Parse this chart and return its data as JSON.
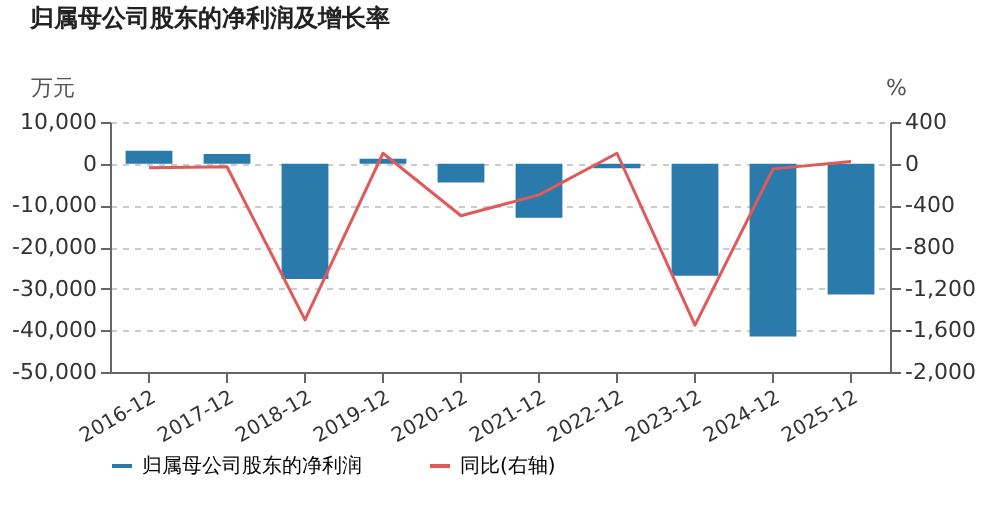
{
  "chart_data": {
    "type": "bar",
    "title": "归属母公司股东的净利润及增长率",
    "ylabel": "万元",
    "y2label": "%",
    "categories": [
      "2016-12",
      "2017-12",
      "2018-12",
      "2019-12",
      "2020-12",
      "2021-12",
      "2022-12",
      "2023-12",
      "2024-12",
      "2025-12"
    ],
    "series": [
      {
        "name": "归属母公司股东的净利润",
        "color": "#2a7aab",
        "values": [
          3100,
          2300,
          -27700,
          1200,
          -4500,
          -13000,
          -1100,
          -26900,
          -41500,
          -31400
        ]
      },
      {
        "name": "同比(右轴)",
        "type": "line",
        "axis": "y2",
        "color": "#e05a5a",
        "values": [
          -40,
          -30,
          -1500,
          100,
          -500,
          -300,
          100,
          -1550,
          -50,
          20
        ]
      }
    ],
    "ylim": [
      -50000,
      10000
    ],
    "yticks": [
      {
        "value": -50000,
        "label": "-50,000"
      },
      {
        "value": -40000,
        "label": "-40,000"
      },
      {
        "value": -30000,
        "label": "-30,000"
      },
      {
        "value": -20000,
        "label": "-20,000"
      },
      {
        "value": -10000,
        "label": "-10,000"
      },
      0,
      {
        "value": 10000,
        "label": "10,000"
      }
    ],
    "y2lim": [
      -2000,
      400
    ],
    "y2ticks": [
      {
        "value": -2000,
        "label": "-2,000"
      },
      {
        "value": -1600,
        "label": "-1,600"
      },
      {
        "value": -1200,
        "label": "-1,200"
      },
      -800,
      -400,
      0,
      400
    ],
    "grid": "y",
    "legend": "bottom",
    "marker": "none",
    "line_style": "solid"
  }
}
